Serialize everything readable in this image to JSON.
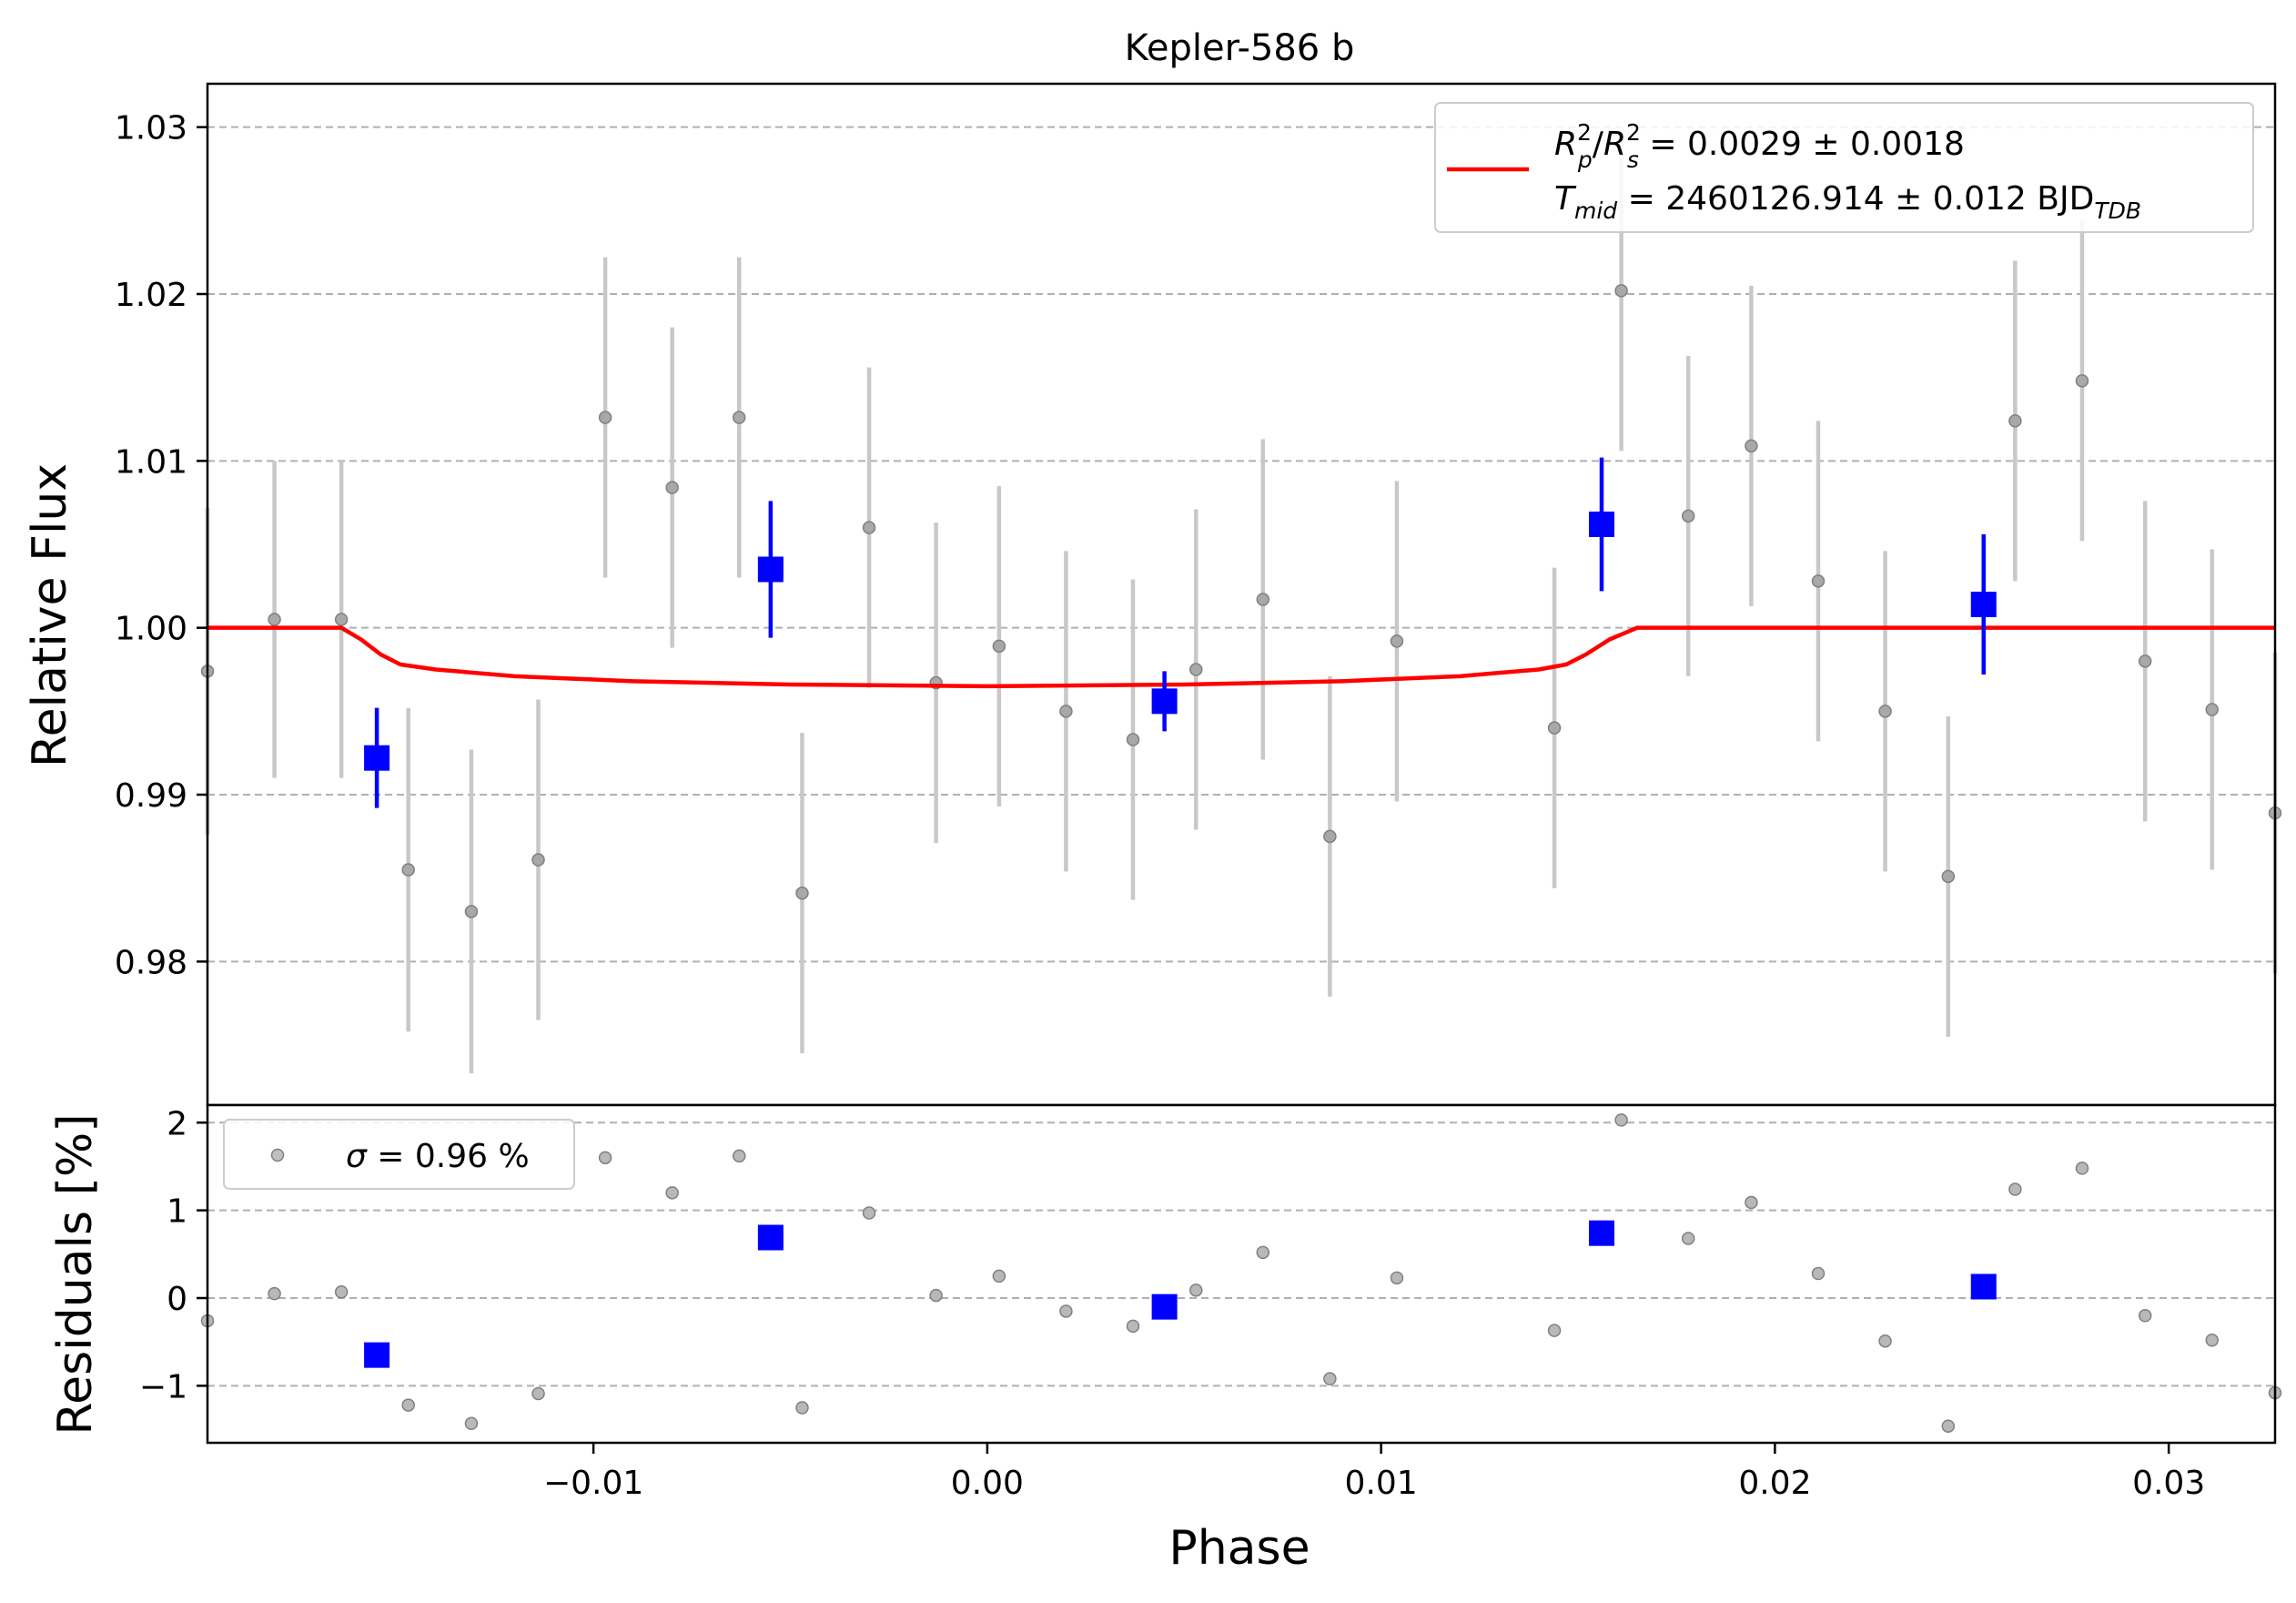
{
  "chart_data": [
    {
      "type": "scatter",
      "title": "Kepler-586 b",
      "xlabel": "Phase",
      "ylabel": "Relative Flux",
      "xlim": [
        -0.0198,
        0.0327
      ],
      "ylim": [
        0.9714,
        1.0326
      ],
      "xticks": [
        -0.01,
        0.0,
        0.01,
        0.02,
        0.03
      ],
      "xtick_labels": [
        "−0.01",
        "0.00",
        "0.01",
        "0.02",
        "0.03"
      ],
      "yticks": [
        0.98,
        0.99,
        1.0,
        1.01,
        1.02,
        1.03
      ],
      "ytick_labels": [
        "0.98",
        "0.99",
        "1.00",
        "1.01",
        "1.02",
        "1.03"
      ],
      "grid": "horizontal dashed",
      "legend_position": "top-right",
      "legend": {
        "line1": {
          "R": "R",
          "sup_p": "2",
          "sub_p": "p",
          "slash": "/",
          "sup_s": "2",
          "sub_s": "s",
          "value": " = 0.0029 ± 0.0018"
        },
        "line2": {
          "T": "T",
          "sub": "mid",
          "value": " = 2460126.914 ± 0.012 BJD",
          "unit_sub": "TDB"
        }
      },
      "colors": {
        "raw": "#808080",
        "raw_err": "#c8c8c8",
        "binned": "#0000ff",
        "model": "#ff0000"
      },
      "series": [
        {
          "kind": "raw",
          "points": [
            {
              "x": -0.0198,
              "y": 0.9974,
              "err": 0.0098
            },
            {
              "x": -0.0181,
              "y": 1.0005,
              "err": 0.0095
            },
            {
              "x": -0.0164,
              "y": 1.0005,
              "err": 0.0095
            },
            {
              "x": -0.0147,
              "y": 0.9855,
              "err": 0.0097
            },
            {
              "x": -0.0131,
              "y": 0.983,
              "err": 0.0097
            },
            {
              "x": -0.0114,
              "y": 0.9861,
              "err": 0.0096
            },
            {
              "x": -0.0097,
              "y": 1.0126,
              "err": 0.0096
            },
            {
              "x": -0.008,
              "y": 1.0084,
              "err": 0.0096
            },
            {
              "x": -0.0063,
              "y": 1.0126,
              "err": 0.0096
            },
            {
              "x": -0.0047,
              "y": 0.9841,
              "err": 0.0096
            },
            {
              "x": -0.003,
              "y": 1.006,
              "err": 0.0096
            },
            {
              "x": -0.0013,
              "y": 0.9967,
              "err": 0.0096
            },
            {
              "x": 0.0003,
              "y": 0.9989,
              "err": 0.0096
            },
            {
              "x": 0.002,
              "y": 0.995,
              "err": 0.0096
            },
            {
              "x": 0.0037,
              "y": 0.9933,
              "err": 0.0096
            },
            {
              "x": 0.0053,
              "y": 0.9975,
              "err": 0.0096
            },
            {
              "x": 0.007,
              "y": 1.0017,
              "err": 0.0096
            },
            {
              "x": 0.0087,
              "y": 0.9875,
              "err": 0.0096
            },
            {
              "x": 0.0104,
              "y": 0.9992,
              "err": 0.0096
            },
            {
              "x": 0.0144,
              "y": 0.994,
              "err": 0.0096
            },
            {
              "x": 0.0161,
              "y": 1.0202,
              "err": 0.0096
            },
            {
              "x": 0.0178,
              "y": 1.0067,
              "err": 0.0096
            },
            {
              "x": 0.0194,
              "y": 1.0109,
              "err": 0.0096
            },
            {
              "x": 0.0211,
              "y": 1.0028,
              "err": 0.0096
            },
            {
              "x": 0.0228,
              "y": 0.995,
              "err": 0.0096
            },
            {
              "x": 0.0244,
              "y": 0.9851,
              "err": 0.0096
            },
            {
              "x": 0.0261,
              "y": 1.0124,
              "err": 0.0096
            },
            {
              "x": 0.0278,
              "y": 1.0148,
              "err": 0.0096
            },
            {
              "x": 0.0294,
              "y": 0.998,
              "err": 0.0096
            },
            {
              "x": 0.0311,
              "y": 0.9951,
              "err": 0.0096
            },
            {
              "x": 0.0327,
              "y": 0.9889,
              "err": 0.0096
            }
          ]
        },
        {
          "kind": "binned",
          "points": [
            {
              "x": -0.0155,
              "y": 0.9922,
              "err": 0.003
            },
            {
              "x": -0.0055,
              "y": 1.0035,
              "err": 0.0041
            },
            {
              "x": 0.0045,
              "y": 0.9956,
              "err": 0.0018
            },
            {
              "x": 0.0156,
              "y": 1.0062,
              "err": 0.004
            },
            {
              "x": 0.0253,
              "y": 1.0014,
              "err": 0.0042
            }
          ]
        },
        {
          "kind": "model",
          "points": [
            {
              "x": -0.0198,
              "y": 1.0
            },
            {
              "x": -0.0164,
              "y": 1.0
            },
            {
              "x": -0.0159,
              "y": 0.9993
            },
            {
              "x": -0.0154,
              "y": 0.9984
            },
            {
              "x": -0.0149,
              "y": 0.9978
            },
            {
              "x": -0.014,
              "y": 0.9975
            },
            {
              "x": -0.012,
              "y": 0.9971
            },
            {
              "x": -0.009,
              "y": 0.9968
            },
            {
              "x": -0.005,
              "y": 0.9966
            },
            {
              "x": 0.0,
              "y": 0.9965
            },
            {
              "x": 0.005,
              "y": 0.9966
            },
            {
              "x": 0.009,
              "y": 0.9968
            },
            {
              "x": 0.012,
              "y": 0.9971
            },
            {
              "x": 0.014,
              "y": 0.9975
            },
            {
              "x": 0.0147,
              "y": 0.9978
            },
            {
              "x": 0.0152,
              "y": 0.9984
            },
            {
              "x": 0.0158,
              "y": 0.9993
            },
            {
              "x": 0.0165,
              "y": 1.0
            },
            {
              "x": 0.0327,
              "y": 1.0
            }
          ]
        }
      ]
    },
    {
      "type": "scatter",
      "xlabel": "Phase",
      "ylabel": "Residuals [%]",
      "xlim": [
        -0.0198,
        0.0327
      ],
      "ylim": [
        -1.65,
        2.2
      ],
      "xticks": [
        -0.01,
        0.0,
        0.01,
        0.02,
        0.03
      ],
      "xtick_labels": [
        "−0.01",
        "0.00",
        "0.01",
        "0.02",
        "0.03"
      ],
      "yticks": [
        -1,
        0,
        1,
        2
      ],
      "ytick_labels": [
        "−1",
        "0",
        "1",
        "2"
      ],
      "grid": "horizontal dashed",
      "legend_position": "top-left",
      "legend": {
        "sigma": "σ",
        "value": " = 0.96 %"
      },
      "series": [
        {
          "kind": "raw",
          "points": [
            {
              "x": -0.0198,
              "y": -0.26
            },
            {
              "x": -0.0181,
              "y": 0.05
            },
            {
              "x": -0.0164,
              "y": 0.07
            },
            {
              "x": -0.0147,
              "y": -1.22
            },
            {
              "x": -0.0131,
              "y": -1.43
            },
            {
              "x": -0.0114,
              "y": -1.09
            },
            {
              "x": -0.0097,
              "y": 1.6
            },
            {
              "x": -0.008,
              "y": 1.2
            },
            {
              "x": -0.0063,
              "y": 1.62
            },
            {
              "x": -0.0047,
              "y": -1.25
            },
            {
              "x": -0.003,
              "y": 0.97
            },
            {
              "x": -0.0013,
              "y": 0.03
            },
            {
              "x": 0.0003,
              "y": 0.25
            },
            {
              "x": 0.002,
              "y": -0.15
            },
            {
              "x": 0.0037,
              "y": -0.32
            },
            {
              "x": 0.0053,
              "y": 0.09
            },
            {
              "x": 0.007,
              "y": 0.52
            },
            {
              "x": 0.0087,
              "y": -0.92
            },
            {
              "x": 0.0104,
              "y": 0.23
            },
            {
              "x": 0.0144,
              "y": -0.37
            },
            {
              "x": 0.0161,
              "y": 2.03
            },
            {
              "x": 0.0178,
              "y": 0.68
            },
            {
              "x": 0.0194,
              "y": 1.09
            },
            {
              "x": 0.0211,
              "y": 0.28
            },
            {
              "x": 0.0228,
              "y": -0.49
            },
            {
              "x": 0.0244,
              "y": -1.46
            },
            {
              "x": 0.0261,
              "y": 1.24
            },
            {
              "x": 0.0278,
              "y": 1.48
            },
            {
              "x": 0.0294,
              "y": -0.2
            },
            {
              "x": 0.0311,
              "y": -0.48
            },
            {
              "x": 0.0327,
              "y": -1.08
            }
          ]
        },
        {
          "kind": "binned",
          "points": [
            {
              "x": -0.0155,
              "y": -0.65
            },
            {
              "x": -0.0055,
              "y": 0.69
            },
            {
              "x": 0.0045,
              "y": -0.1
            },
            {
              "x": 0.0156,
              "y": 0.74
            },
            {
              "x": 0.0253,
              "y": 0.13
            }
          ]
        }
      ]
    }
  ]
}
